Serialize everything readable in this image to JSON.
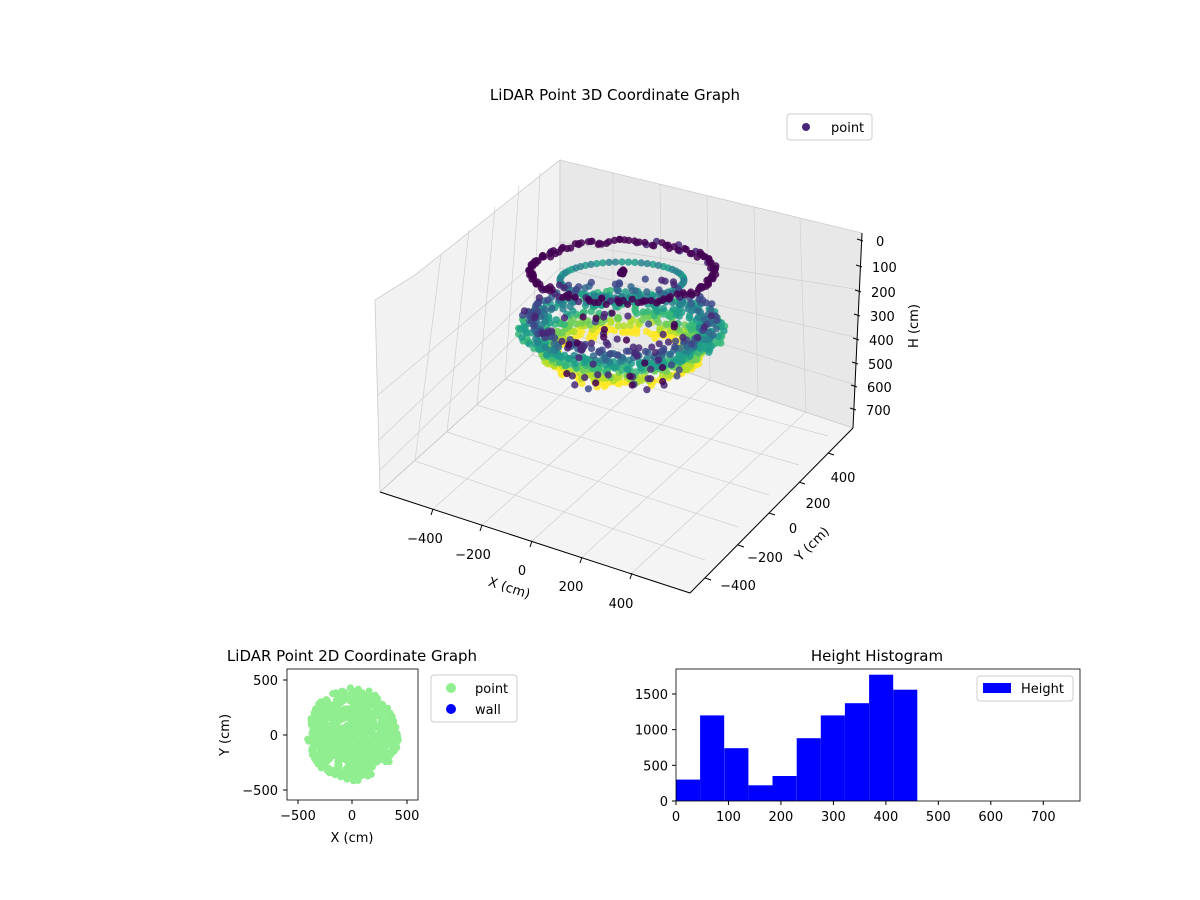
{
  "figure": {
    "background": "#ffffff"
  },
  "chart_data": [
    {
      "type": "scatter",
      "projection": "3d",
      "title": "LiDAR Point 3D Coordinate Graph",
      "xlabel": "X (cm)",
      "ylabel": "Y (cm)",
      "zlabel": "H (cm)",
      "xlim": [
        -500,
        500
      ],
      "ylim": [
        -500,
        500
      ],
      "zlim": [
        750,
        0
      ],
      "z_inverted": true,
      "x_ticks": [
        "−400",
        "−200",
        "0",
        "200",
        "400"
      ],
      "y_ticks": [
        "−400",
        "−200",
        "0",
        "200",
        "400"
      ],
      "z_ticks": [
        "0",
        "100",
        "200",
        "300",
        "400",
        "500",
        "600",
        "700"
      ],
      "colormap": "viridis",
      "legend": {
        "entries": [
          "point"
        ],
        "placement": "top-right",
        "marker_color": "#482677"
      },
      "grid": true,
      "series": [
        {
          "name": "point",
          "shape": "bowl",
          "rim_radius_cm": 350,
          "rim_height_cm": 60,
          "bottom_height_cm": 500,
          "approx_count": 8000
        }
      ]
    },
    {
      "type": "scatter",
      "title": "LiDAR Point 2D Coordinate Graph",
      "xlabel": "X (cm)",
      "ylabel": "Y (cm)",
      "xlim": [
        -600,
        600
      ],
      "ylim": [
        -600,
        600
      ],
      "x_ticks": [
        "−500",
        "0",
        "500"
      ],
      "y_ticks": [
        "−500",
        "0",
        "500"
      ],
      "legend": {
        "placement": "outside-right"
      },
      "series": [
        {
          "name": "point",
          "color": "#90ee90",
          "shape": "disc",
          "radius_cm": 430
        },
        {
          "name": "wall",
          "color": "#0000ff",
          "count": 0
        }
      ]
    },
    {
      "type": "bar",
      "subtype": "histogram",
      "title": "Height Histogram",
      "xlabel": "",
      "ylabel": "",
      "xlim": [
        0,
        770
      ],
      "ylim": [
        0,
        1850
      ],
      "x_ticks": [
        "0",
        "100",
        "200",
        "300",
        "400",
        "500",
        "600",
        "700"
      ],
      "y_ticks": [
        "0",
        "500",
        "1000",
        "1500"
      ],
      "bin_edges": [
        0,
        46,
        92,
        138,
        184,
        230,
        276,
        322,
        368,
        414,
        460
      ],
      "values": [
        300,
        1200,
        740,
        220,
        350,
        880,
        1200,
        1370,
        1770,
        1560
      ],
      "legend": {
        "placement": "top-right"
      },
      "series": [
        {
          "name": "Height",
          "color": "#0000ff"
        }
      ]
    }
  ]
}
